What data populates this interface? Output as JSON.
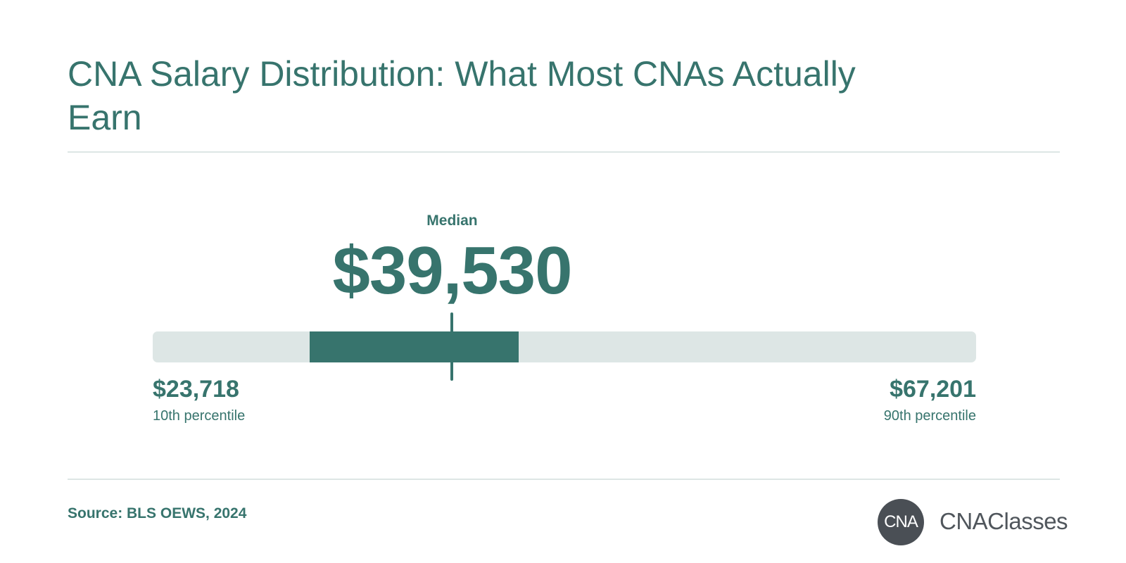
{
  "title": "CNA Salary Distribution: What Most CNAs Actually Earn",
  "colors": {
    "accent": "#37746d",
    "track": "#dde6e5",
    "logo_circle": "#4a4f55",
    "logo_text": "#50565c"
  },
  "chart_data": {
    "type": "range",
    "title": "CNA Salary Distribution: What Most CNAs Actually Earn",
    "min": 23718,
    "max": 67201,
    "median": 39530,
    "interquartile_range": [
      32000,
      43050
    ],
    "median_label": "Median",
    "median_text": "$39,530",
    "low_text": "$23,718",
    "low_label": "10th percentile",
    "high_text": "$67,201",
    "high_label": "90th percentile"
  },
  "footer": {
    "source": "Source: BLS OEWS, 2024",
    "logo_mark": "CNA",
    "logo_name": "CNAClasses"
  }
}
